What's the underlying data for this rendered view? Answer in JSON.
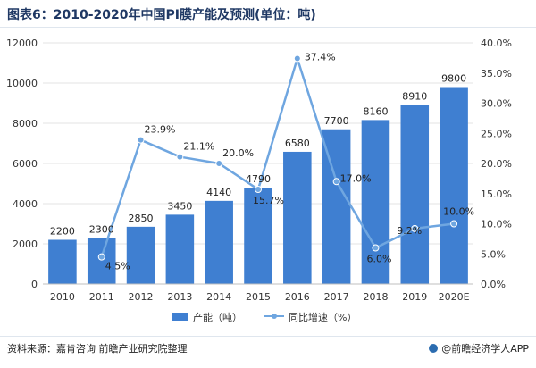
{
  "header": {
    "title": "图表6：2010-2020年中国PI膜产能及预测(单位：吨)"
  },
  "footer": {
    "source": "资料来源：嘉肯咨询 前瞻产业研究院整理",
    "brand": "@前瞻经济学人APP"
  },
  "colors": {
    "bar": "#3f7fd1",
    "line": "#6fa6e0",
    "axis_text": "#333333",
    "grid": "#e3e3e3"
  },
  "chart_data": {
    "type": "bar",
    "categories": [
      "2010",
      "2011",
      "2012",
      "2013",
      "2014",
      "2015",
      "2016",
      "2017",
      "2018",
      "2019",
      "2020E"
    ],
    "series": [
      {
        "name": "产能（吨）",
        "type": "bar",
        "axis": "left",
        "values": [
          2200,
          2300,
          2850,
          3450,
          4140,
          4790,
          6580,
          7700,
          8160,
          8910,
          9800
        ]
      },
      {
        "name": "同比增速（%）",
        "type": "line",
        "axis": "right",
        "values": [
          null,
          4.5,
          23.9,
          21.1,
          20.0,
          15.7,
          37.4,
          17.0,
          6.0,
          9.2,
          10.0
        ],
        "labels": [
          "",
          "4.5%",
          "23.9%",
          "21.1%",
          "20.0%",
          "15.7%",
          "37.4%",
          "17.0%",
          "6.0%",
          "9.2%",
          "10.0%"
        ]
      }
    ],
    "y_left": {
      "ylim": [
        0,
        12000
      ],
      "ticks": [
        "0",
        "2000",
        "4000",
        "6000",
        "8000",
        "10000",
        "12000"
      ]
    },
    "y_right": {
      "ylim": [
        0,
        40
      ],
      "ticks": [
        "0.0%",
        "5.0%",
        "10.0%",
        "15.0%",
        "20.0%",
        "25.0%",
        "30.0%",
        "35.0%",
        "40.0%"
      ]
    },
    "grid": true,
    "legend": "bottom-center"
  }
}
